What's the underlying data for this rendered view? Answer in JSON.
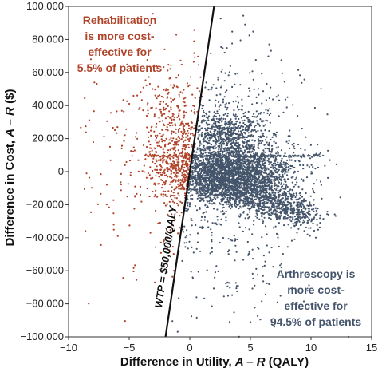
{
  "chart_data": {
    "type": "scatter",
    "title": "",
    "xlabel_prefix": "Difference in Utility, ",
    "xlabel_var": "A – R",
    "xlabel_suffix": " (QALY)",
    "ylabel_prefix": "Difference in Cost, ",
    "ylabel_var": "A – R",
    "ylabel_suffix": " ($)",
    "xlim": [
      -10,
      15
    ],
    "ylim": [
      -100000,
      100000
    ],
    "x_ticks": [
      -10,
      -5,
      0,
      5,
      10,
      15
    ],
    "x_tick_labels": [
      "−10",
      "−5",
      "0",
      "5",
      "10",
      "15"
    ],
    "y_ticks": [
      -100000,
      -80000,
      -60000,
      -40000,
      -20000,
      0,
      20000,
      40000,
      60000,
      80000,
      100000
    ],
    "y_tick_labels": [
      "−100,000",
      "−80,000",
      "−60,000",
      "−40,000",
      "−20,000",
      "0",
      "20,000",
      "40,000",
      "60,000",
      "80,000",
      "100,000"
    ],
    "grid": false,
    "wtp_threshold_per_qaly": 50000,
    "wtp_label": "WTP = $50,000/QALY",
    "series": [
      {
        "share_percent": 5.5,
        "color": "#b0442a",
        "region": "above the WTP line (upper left)",
        "annotation": [
          "Rehabilitation",
          "is more cost-",
          "effective for",
          "5.5% of patients"
        ]
      },
      {
        "share_percent": 94.5,
        "color": "#44546a",
        "region": "below the WTP line (right)",
        "annotation": [
          "Arthroscopy is",
          "more cost-",
          "effective for",
          "94.5% of patients"
        ]
      }
    ],
    "clusters": [
      {
        "center": [
          3.5,
          0
        ],
        "spread": [
          2.5,
          9000
        ],
        "description": "dense core near zero cost"
      },
      {
        "center": [
          3,
          25000
        ],
        "spread": [
          1.5,
          6000
        ],
        "description": "upper plume"
      },
      {
        "center": [
          6,
          -12000
        ],
        "spread": [
          2.5,
          8000
        ],
        "description": "lower-right arm"
      },
      {
        "x_range": [
          -4,
          11
        ],
        "y": 9500,
        "description": "horizontal streak"
      }
    ]
  }
}
